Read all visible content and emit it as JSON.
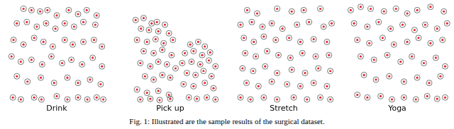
{
  "caption": "Fig. 1: Illustrated are the sample results of the surgical dataset.",
  "chart_data": [
    {
      "type": "scatter",
      "title": "Drink",
      "xlim": [
        0,
        160
      ],
      "ylim": [
        0,
        150
      ],
      "grid": false,
      "tick_labels": false,
      "color": "#e8262a",
      "marker": "circle",
      "x": [
        30,
        42,
        55,
        66,
        80,
        98,
        112,
        125,
        140,
        20,
        35,
        50,
        64,
        78,
        92,
        106,
        120,
        138,
        15,
        30,
        46,
        60,
        74,
        92,
        104,
        120,
        136,
        148,
        12,
        26,
        42,
        58,
        72,
        88,
        102,
        118,
        134,
        148,
        20,
        36,
        56,
        76,
        96,
        112,
        130,
        146,
        14,
        26,
        46,
        57,
        80,
        96,
        112,
        126,
        140,
        150
      ],
      "values": [
        142,
        140,
        138,
        140,
        132,
        140,
        134,
        140,
        132,
        120,
        122,
        115,
        120,
        112,
        120,
        115,
        122,
        118,
        95,
        88,
        98,
        92,
        85,
        95,
        88,
        92,
        95,
        85,
        70,
        62,
        65,
        58,
        70,
        60,
        65,
        58,
        68,
        55,
        40,
        32,
        38,
        30,
        38,
        30,
        35,
        28,
        8,
        5,
        8,
        5,
        10,
        5,
        8,
        5,
        8,
        5
      ]
    },
    {
      "type": "scatter",
      "title": "Pick up",
      "xlim": [
        0,
        160
      ],
      "ylim": [
        0,
        150
      ],
      "grid": false,
      "tick_labels": false,
      "color": "#e8262a",
      "marker": "circle",
      "x": [
        28,
        40,
        52,
        60,
        72,
        36,
        48,
        62,
        78,
        30,
        45,
        58,
        70,
        84,
        40,
        55,
        68,
        82,
        35,
        50,
        62,
        75,
        88,
        42,
        55,
        68,
        80,
        30,
        45,
        62,
        78,
        35,
        50,
        64,
        80,
        110,
        122,
        132,
        102,
        115,
        128,
        140,
        98,
        112,
        125,
        138,
        148,
        105,
        118,
        130,
        142,
        100,
        115,
        132,
        145,
        108,
        120,
        135,
        148
      ],
      "values": [
        125,
        128,
        120,
        122,
        118,
        112,
        110,
        108,
        105,
        95,
        92,
        96,
        90,
        95,
        78,
        75,
        80,
        72,
        60,
        55,
        62,
        58,
        52,
        40,
        35,
        42,
        38,
        20,
        15,
        18,
        12,
        5,
        6,
        4,
        6,
        88,
        92,
        85,
        75,
        78,
        72,
        76,
        60,
        62,
        58,
        64,
        55,
        45,
        42,
        48,
        40,
        28,
        25,
        30,
        22,
        8,
        6,
        8,
        5
      ]
    },
    {
      "type": "scatter",
      "title": "Stretch",
      "xlim": [
        0,
        160
      ],
      "ylim": [
        0,
        150
      ],
      "grid": false,
      "tick_labels": false,
      "color": "#e8262a",
      "marker": "circle",
      "x": [
        25,
        40,
        70,
        92,
        110,
        135,
        15,
        32,
        48,
        62,
        78,
        100,
        118,
        140,
        152,
        20,
        35,
        50,
        68,
        88,
        105,
        125,
        145,
        22,
        38,
        55,
        72,
        90,
        108,
        128,
        148,
        18,
        34,
        52,
        70,
        92,
        112,
        132,
        150,
        24,
        42,
        62,
        85,
        105,
        125,
        145,
        15,
        30,
        50,
        70,
        95,
        115,
        135,
        150
      ],
      "values": [
        140,
        135,
        142,
        138,
        140,
        142,
        118,
        122,
        115,
        120,
        112,
        118,
        122,
        115,
        120,
        98,
        92,
        100,
        95,
        98,
        92,
        96,
        92,
        75,
        70,
        78,
        72,
        68,
        75,
        70,
        72,
        52,
        48,
        55,
        45,
        50,
        45,
        52,
        48,
        30,
        25,
        32,
        28,
        25,
        30,
        25,
        8,
        5,
        8,
        5,
        8,
        5,
        8,
        5
      ]
    },
    {
      "type": "scatter",
      "title": "Yoga",
      "xlim": [
        0,
        160
      ],
      "ylim": [
        0,
        150
      ],
      "grid": false,
      "tick_labels": false,
      "color": "#e8262a",
      "marker": "circle",
      "x": [
        10,
        25,
        40,
        60,
        78,
        95,
        110,
        130,
        150,
        15,
        35,
        52,
        70,
        88,
        106,
        122,
        140,
        155,
        20,
        38,
        58,
        75,
        95,
        112,
        130,
        148,
        25,
        45,
        65,
        85,
        102,
        120,
        138,
        152,
        30,
        48,
        68,
        90,
        110,
        128,
        145,
        20,
        35,
        55,
        72,
        90,
        108,
        125,
        140,
        152
      ],
      "values": [
        140,
        145,
        142,
        138,
        142,
        135,
        140,
        145,
        138,
        120,
        115,
        122,
        112,
        118,
        110,
        118,
        112,
        120,
        95,
        90,
        98,
        88,
        92,
        98,
        90,
        95,
        70,
        65,
        72,
        62,
        70,
        60,
        68,
        55,
        42,
        35,
        40,
        32,
        38,
        30,
        40,
        12,
        8,
        10,
        5,
        8,
        5,
        10,
        6,
        8
      ]
    }
  ]
}
